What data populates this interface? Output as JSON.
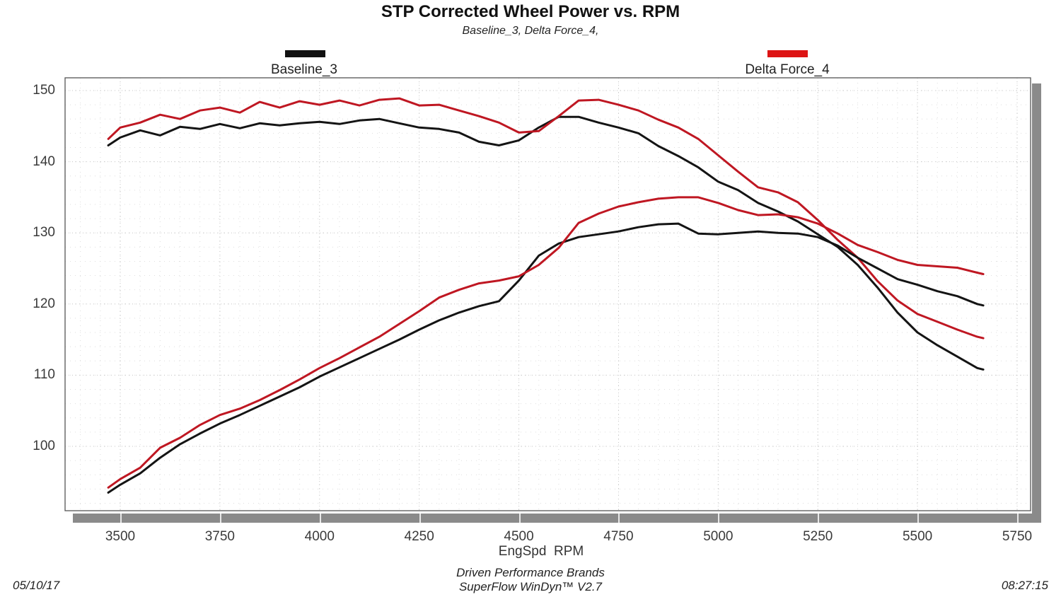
{
  "chart_data": {
    "type": "line",
    "title": "STP Corrected Wheel Power vs. RPM",
    "subtitle": "Baseline_3, Delta Force_4,",
    "xlabel": "EngSpd  RPM",
    "ylabel": "",
    "xlim": [
      3362,
      5775
    ],
    "ylim": [
      91,
      151.8
    ],
    "x_ticks": [
      3500,
      3750,
      4000,
      4250,
      4500,
      4750,
      5000,
      5250,
      5500,
      5750
    ],
    "y_ticks": [
      100,
      110,
      120,
      130,
      140,
      150
    ],
    "grid": {
      "style": "dotted",
      "minor_x_step": 50,
      "minor_y_step": 2,
      "major_at_ticks": true
    },
    "legend": [
      {
        "label": "Baseline_3",
        "swatch_color": "#111111",
        "position": "top-left"
      },
      {
        "label": "Delta Force_4",
        "swatch_color": "#dd1414",
        "position": "top-right"
      }
    ],
    "x_rpm": [
      3470,
      3500,
      3550,
      3600,
      3650,
      3700,
      3750,
      3800,
      3850,
      3900,
      3950,
      4000,
      4050,
      4100,
      4150,
      4200,
      4250,
      4300,
      4350,
      4400,
      4450,
      4500,
      4550,
      4600,
      4650,
      4700,
      4750,
      4800,
      4850,
      4900,
      4950,
      5000,
      5050,
      5100,
      5150,
      5200,
      5250,
      5300,
      5350,
      5400,
      5450,
      5500,
      5550,
      5600,
      5650,
      5665
    ],
    "series": [
      {
        "name": "Baseline_3 — upper curve (torque)",
        "run": "Baseline_3",
        "color": "#141414",
        "values": [
          142.3,
          143.4,
          144.4,
          143.7,
          144.9,
          144.6,
          145.3,
          144.7,
          145.4,
          145.1,
          145.4,
          145.6,
          145.3,
          145.8,
          146.0,
          145.4,
          144.8,
          144.6,
          144.1,
          142.8,
          142.3,
          143.0,
          144.8,
          146.3,
          146.3,
          145.5,
          144.8,
          144.0,
          142.2,
          140.8,
          139.2,
          137.2,
          136.0,
          134.2,
          133.0,
          131.6,
          129.8,
          128.0,
          125.5,
          122.3,
          118.8,
          116.0,
          114.2,
          112.6,
          111.0,
          110.8
        ]
      },
      {
        "name": "Delta Force_4 — upper curve (torque)",
        "run": "Delta Force_4",
        "color": "#bf1722",
        "values": [
          143.2,
          144.8,
          145.5,
          146.6,
          146.0,
          147.2,
          147.6,
          146.9,
          148.4,
          147.6,
          148.5,
          148.0,
          148.6,
          147.9,
          148.7,
          148.9,
          147.9,
          148.0,
          147.2,
          146.4,
          145.5,
          144.1,
          144.3,
          146.4,
          148.6,
          148.7,
          148.0,
          147.2,
          145.9,
          144.8,
          143.2,
          140.9,
          138.6,
          136.4,
          135.7,
          134.3,
          131.8,
          129.0,
          126.5,
          123.2,
          120.5,
          118.6,
          117.5,
          116.4,
          115.4,
          115.2
        ]
      },
      {
        "name": "Baseline_3 — lower curve (power)",
        "run": "Baseline_3",
        "color": "#141414",
        "values": [
          93.5,
          94.6,
          96.2,
          98.4,
          100.3,
          101.8,
          103.2,
          104.4,
          105.7,
          107.0,
          108.3,
          109.8,
          111.1,
          112.4,
          113.7,
          115.0,
          116.4,
          117.7,
          118.8,
          119.7,
          120.4,
          123.3,
          126.8,
          128.5,
          129.4,
          129.8,
          130.2,
          130.8,
          131.2,
          131.3,
          129.9,
          129.8,
          130.0,
          130.2,
          130.0,
          129.9,
          129.4,
          128.2,
          126.5,
          125.0,
          123.5,
          122.7,
          121.8,
          121.1,
          120.0,
          119.8
        ]
      },
      {
        "name": "Delta Force_4 — lower curve (power)",
        "run": "Delta Force_4",
        "color": "#bf1722",
        "values": [
          94.2,
          95.4,
          97.0,
          99.8,
          101.2,
          103.0,
          104.4,
          105.3,
          106.5,
          107.9,
          109.4,
          111.0,
          112.4,
          113.9,
          115.4,
          117.2,
          119.0,
          120.9,
          122.0,
          122.9,
          123.3,
          123.9,
          125.5,
          127.9,
          131.4,
          132.7,
          133.7,
          134.3,
          134.8,
          135.0,
          135.0,
          134.2,
          133.2,
          132.5,
          132.6,
          132.2,
          131.3,
          129.9,
          128.3,
          127.3,
          126.2,
          125.5,
          125.3,
          125.1,
          124.4,
          124.2
        ]
      }
    ]
  },
  "footer": {
    "brand_line1": "Driven Performance Brands",
    "brand_line2": "SuperFlow WinDyn™ V2.7",
    "date": "05/10/17",
    "time": "08:27:15"
  }
}
